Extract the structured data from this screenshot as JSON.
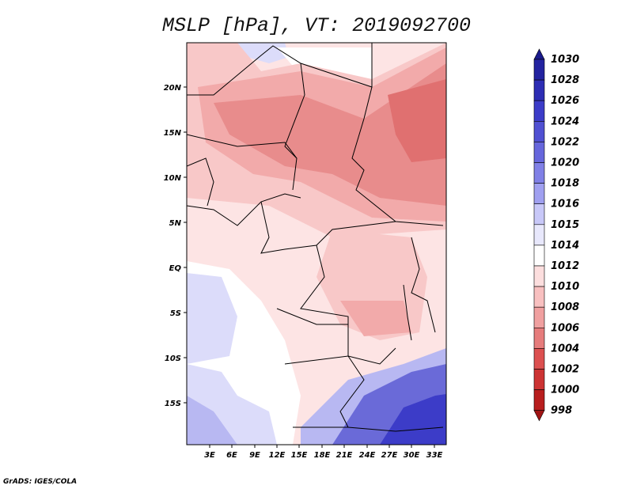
{
  "title": "MSLP [hPa], VT: 2019092700",
  "footer": "GrADS: IGES/COLA",
  "lat_labels": [
    "20N",
    "15N",
    "10N",
    "5N",
    "EQ",
    "5S",
    "10S",
    "15S"
  ],
  "lon_labels": [
    "3E",
    "6E",
    "9E",
    "12E",
    "15E",
    "18E",
    "21E",
    "24E",
    "27E",
    "30E",
    "33E"
  ],
  "colorbar": {
    "labels": [
      "1030",
      "1028",
      "1026",
      "1024",
      "1022",
      "1020",
      "1018",
      "1016",
      "1015",
      "1014",
      "1012",
      "1010",
      "1008",
      "1006",
      "1004",
      "1002",
      "1000",
      "998"
    ],
    "colors": [
      "#1a1a8c",
      "#2323a0",
      "#2d2db4",
      "#3c3cc8",
      "#5050d2",
      "#6666dc",
      "#8080e6",
      "#a0a0f0",
      "#c8c8f8",
      "#e8e8fc",
      "#ffffff",
      "#fcdede",
      "#f8c0c0",
      "#f0a0a0",
      "#e67c7c",
      "#dc5050",
      "#cc3333",
      "#b81e1e",
      "#a01414"
    ]
  },
  "map_colors": {
    "strong_blue": "#3c3cc8",
    "mid_blue": "#6a6ad8",
    "light_blue": "#b8b8f2",
    "pale_blue": "#dcdcfa",
    "white": "#ffffff",
    "pale_pink": "#fde4e4",
    "pink": "#f8c8c8",
    "light_red": "#f2aaaa",
    "red": "#e88c8c",
    "deep_red": "#e07070"
  }
}
